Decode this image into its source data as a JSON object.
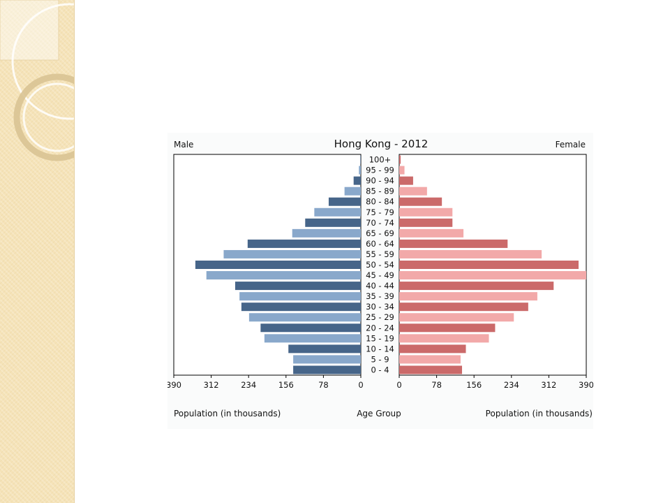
{
  "chart_data": {
    "type": "bar",
    "title": "Hong Kong - 2012",
    "left_label": "Male",
    "right_label": "Female",
    "categories": [
      "100+",
      "95 - 99",
      "90 - 94",
      "85 - 89",
      "80 - 84",
      "75 - 79",
      "70 - 74",
      "65 - 69",
      "60 - 64",
      "55 - 59",
      "50 - 54",
      "45 - 49",
      "40 - 44",
      "35 - 39",
      "30 - 34",
      "25 - 29",
      "20 - 24",
      "15 - 19",
      "10 - 14",
      "5 - 9",
      "0 - 4"
    ],
    "series": [
      {
        "name": "Male",
        "values": [
          1,
          4,
          15,
          34,
          67,
          97,
          116,
          143,
          236,
          286,
          345,
          322,
          262,
          253,
          249,
          233,
          209,
          201,
          151,
          141,
          141
        ]
      },
      {
        "name": "Female",
        "values": [
          3,
          11,
          29,
          58,
          89,
          111,
          111,
          134,
          226,
          297,
          374,
          390,
          322,
          288,
          269,
          239,
          200,
          187,
          139,
          128,
          131
        ]
      }
    ],
    "xlim": [
      0,
      390
    ],
    "ticks": [
      "390",
      "312",
      "234",
      "156",
      "78",
      "0"
    ],
    "ticks_right": [
      "0",
      "78",
      "156",
      "234",
      "312",
      "390"
    ],
    "xlabel_left": "Population (in thousands)",
    "xlabel_center": "Age Group",
    "xlabel_right": "Population (in thousands)",
    "colors": {
      "male_dark": "#466589",
      "male_light": "#89a8cb",
      "female_dark": "#cb6a6a",
      "female_light": "#f2a9a9",
      "frame": "#000000"
    }
  }
}
